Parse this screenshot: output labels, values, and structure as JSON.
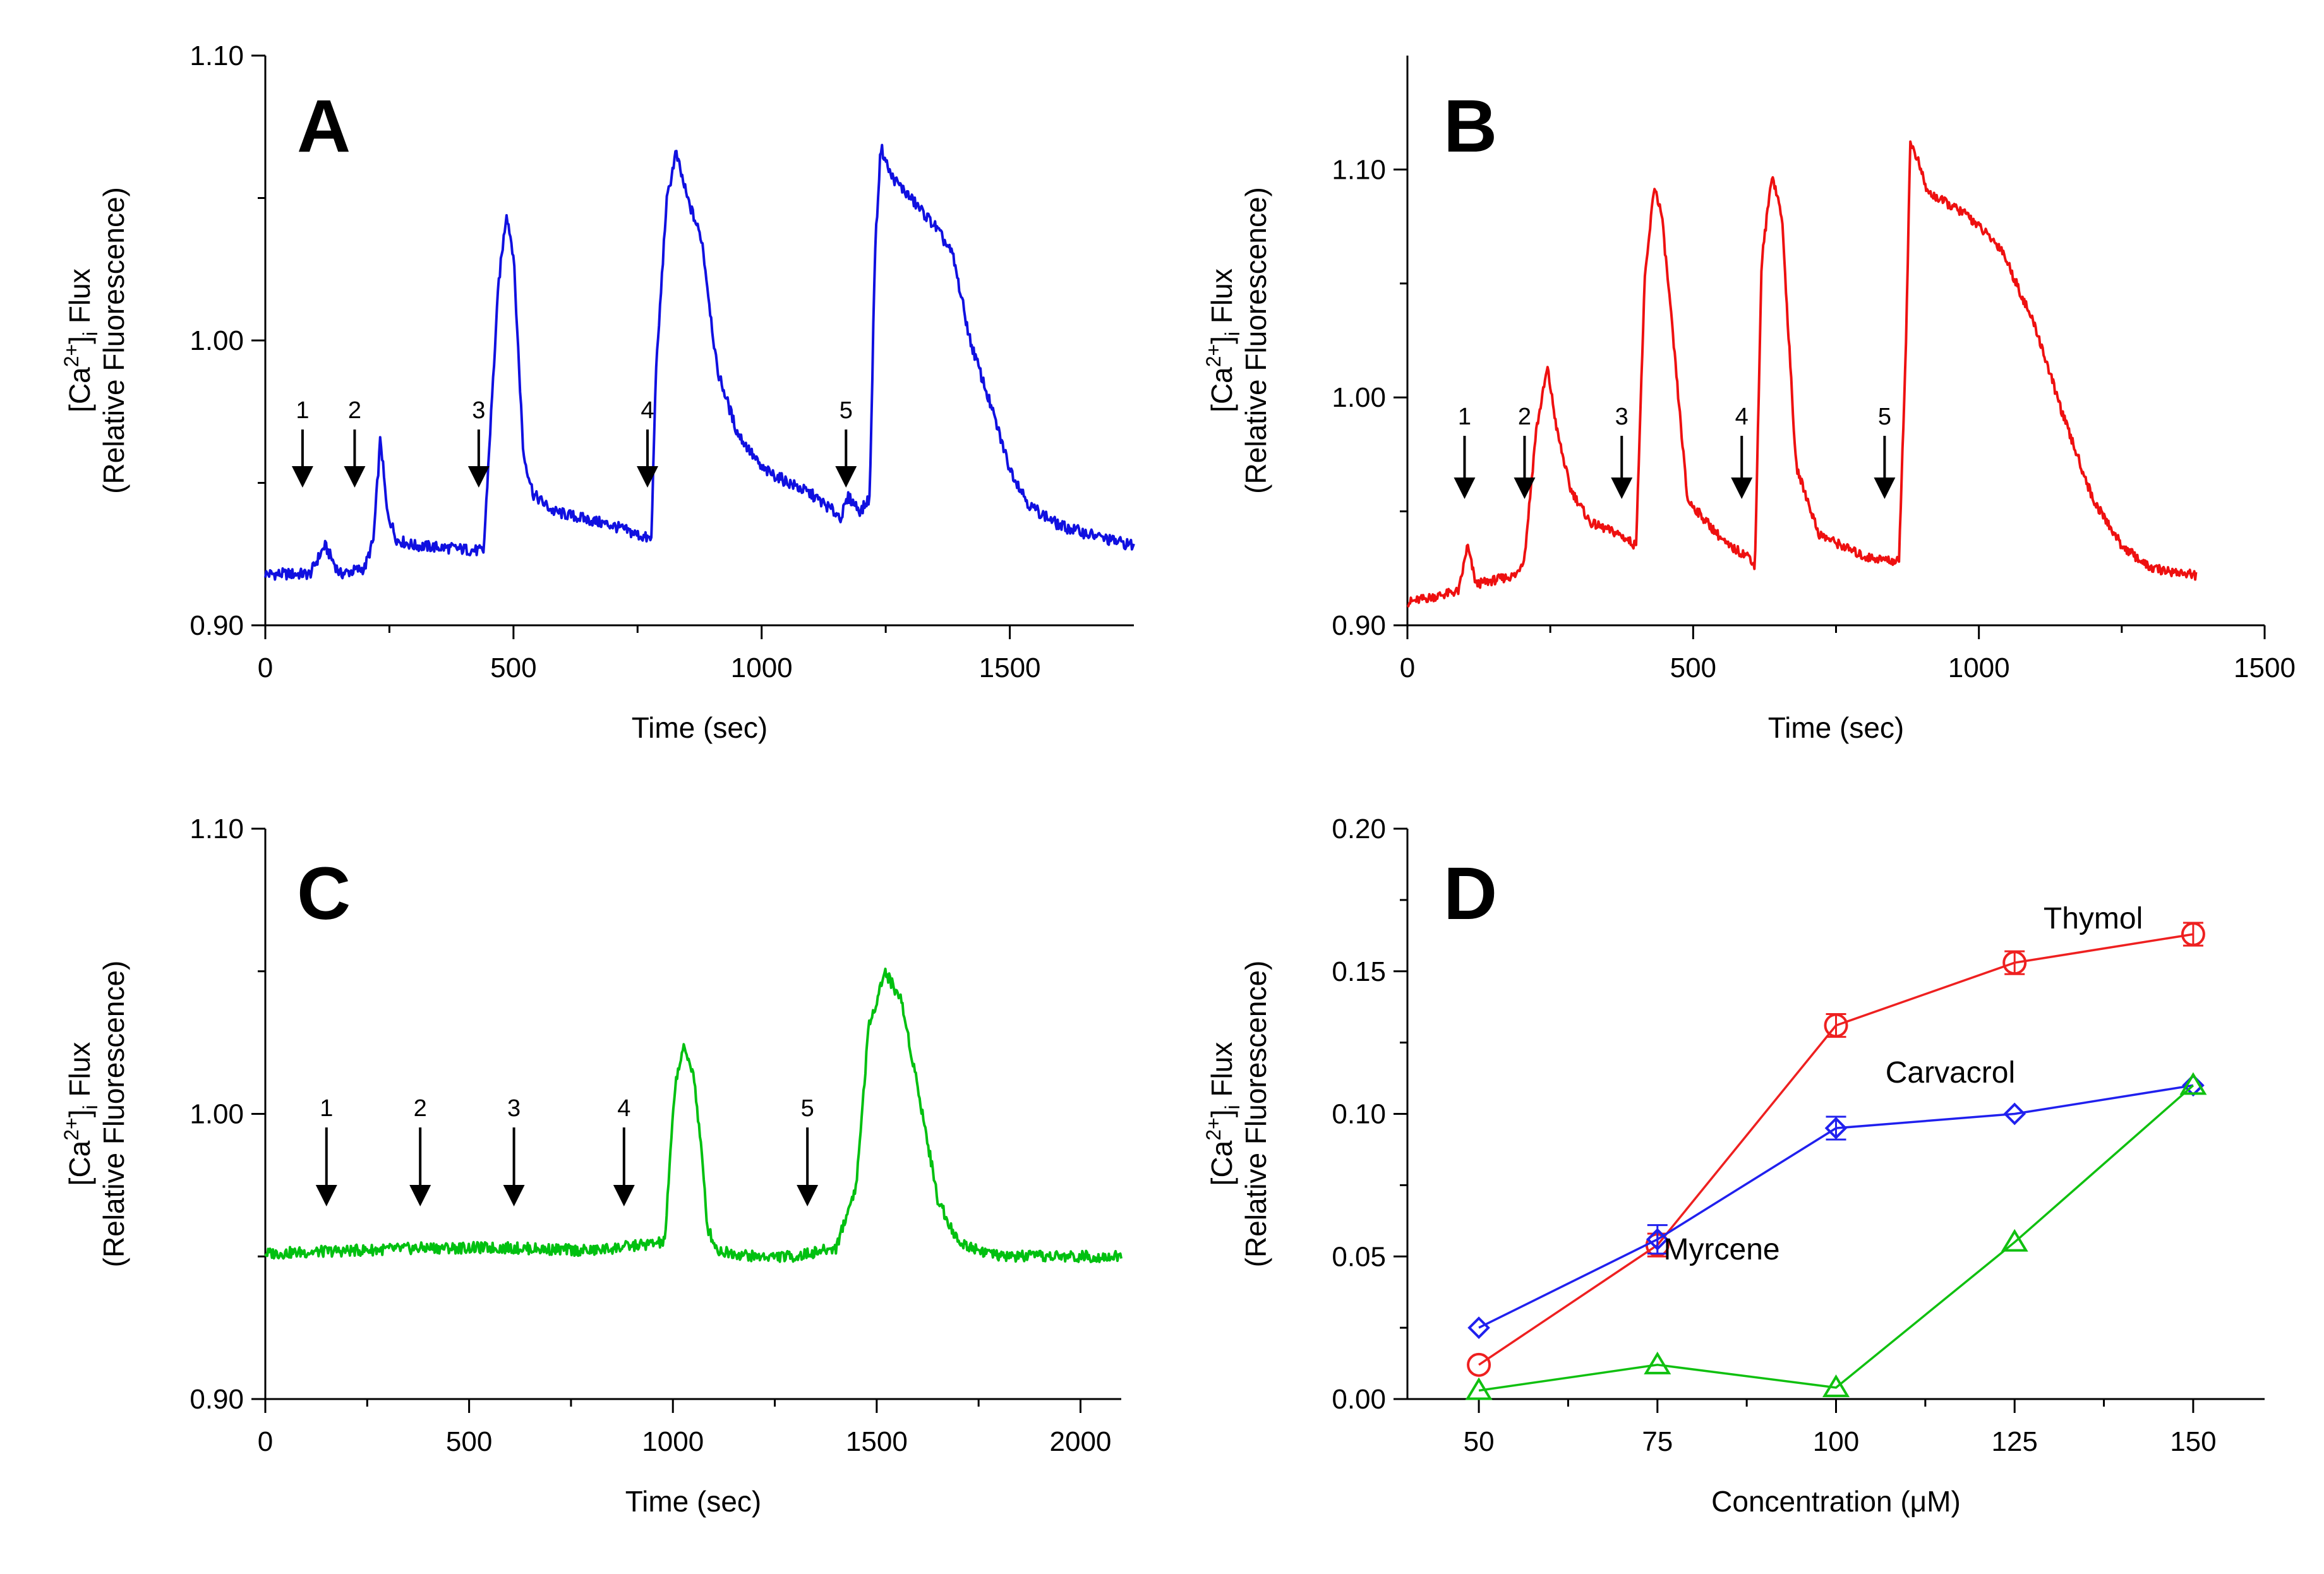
{
  "chart_data": [
    {
      "type": "line",
      "panel": "A",
      "color": "#1010e0",
      "xlabel": "Time  (sec)",
      "ylabel_line1": "[Ca2+]i Flux",
      "ylabel_line2": "(Relative Fluorescence)",
      "xlim": [
        0,
        1750
      ],
      "ylim": [
        0.9,
        1.1
      ],
      "xticks": [
        0,
        500,
        1000,
        1500
      ],
      "xtick_labels": [
        "0",
        "500",
        "1000",
        "1500"
      ],
      "yticks": [
        0.9,
        1.0,
        1.1
      ],
      "ytick_labels": [
        "0.90",
        "1.00",
        "1.10"
      ],
      "minor_xticks": [
        250,
        750,
        1250
      ],
      "minor_yticks": [
        0.95,
        1.05
      ],
      "arrows": [
        {
          "label": "1",
          "x": 75
        },
        {
          "label": "2",
          "x": 180
        },
        {
          "label": "3",
          "x": 430
        },
        {
          "label": "4",
          "x": 770
        },
        {
          "label": "5",
          "x": 1170
        }
      ],
      "x": [
        0,
        90,
        120,
        150,
        200,
        218,
        232,
        245,
        265,
        300,
        380,
        440,
        452,
        470,
        486,
        500,
        520,
        540,
        580,
        700,
        778,
        786,
        808,
        827,
        850,
        880,
        910,
        950,
        1000,
        1100,
        1160,
        1175,
        1200,
        1218,
        1228,
        1240,
        1260,
        1300,
        1350,
        1385,
        1420,
        1460,
        1500,
        1540,
        1600,
        1700,
        1750
      ],
      "values": [
        0.918,
        0.918,
        0.928,
        0.918,
        0.92,
        0.93,
        0.966,
        0.94,
        0.93,
        0.928,
        0.927,
        0.926,
        0.965,
        1.02,
        1.045,
        1.03,
        0.96,
        0.946,
        0.94,
        0.935,
        0.93,
        0.985,
        1.048,
        1.066,
        1.05,
        1.035,
        0.99,
        0.968,
        0.955,
        0.946,
        0.938,
        0.945,
        0.94,
        0.945,
        1.03,
        1.068,
        1.058,
        1.05,
        1.04,
        1.03,
        1.0,
        0.978,
        0.955,
        0.942,
        0.935,
        0.93,
        0.928
      ]
    },
    {
      "type": "line",
      "panel": "B",
      "color": "#ee1010",
      "xlabel": "Time  (sec)",
      "ylabel_line1": "[Ca2+]i Flux",
      "ylabel_line2": "(Relative Fluorescence)",
      "xlim": [
        0,
        1500
      ],
      "ylim": [
        0.9,
        1.15
      ],
      "xticks": [
        0,
        500,
        1000,
        1500
      ],
      "xtick_labels": [
        "0",
        "500",
        "1000",
        "1500"
      ],
      "yticks": [
        0.9,
        1.0,
        1.1
      ],
      "ytick_labels": [
        "0.90",
        "1.00",
        "1.10"
      ],
      "minor_xticks": [
        250,
        750,
        1250
      ],
      "minor_yticks": [
        0.95,
        1.05
      ],
      "arrows": [
        {
          "label": "1",
          "x": 100
        },
        {
          "label": "2",
          "x": 205
        },
        {
          "label": "3",
          "x": 375
        },
        {
          "label": "4",
          "x": 585
        },
        {
          "label": "5",
          "x": 835
        }
      ],
      "x": [
        0,
        90,
        105,
        120,
        190,
        205,
        225,
        245,
        262,
        285,
        320,
        370,
        400,
        415,
        432,
        445,
        460,
        490,
        560,
        600,
        608,
        620,
        638,
        655,
        680,
        720,
        800,
        860,
        872,
        880,
        892,
        910,
        980,
        1040,
        1100,
        1150,
        1200,
        1250,
        1300,
        1380
      ],
      "values": [
        0.91,
        0.915,
        0.935,
        0.918,
        0.922,
        0.93,
        0.985,
        1.013,
        0.985,
        0.96,
        0.945,
        0.94,
        0.935,
        1.05,
        1.093,
        1.08,
        1.04,
        0.955,
        0.935,
        0.93,
        0.925,
        1.06,
        1.098,
        1.08,
        0.97,
        0.94,
        0.93,
        0.928,
        1.02,
        1.112,
        1.105,
        1.09,
        1.08,
        1.065,
        1.03,
        0.99,
        0.955,
        0.935,
        0.925,
        0.922
      ]
    },
    {
      "type": "line",
      "panel": "C",
      "color": "#00c010",
      "xlabel": "Time  (sec)",
      "ylabel_line1": "[Ca2+]i Flux",
      "ylabel_line2": "(Relative Fluorescence)",
      "xlim": [
        0,
        2100
      ],
      "ylim": [
        0.9,
        1.1
      ],
      "xticks": [
        0,
        500,
        1000,
        1500,
        2000
      ],
      "xtick_labels": [
        "0",
        "500",
        "1000",
        "1500",
        "2000"
      ],
      "yticks": [
        0.9,
        1.0,
        1.1
      ],
      "ytick_labels": [
        "0.90",
        "1.00",
        "1.10"
      ],
      "minor_xticks": [
        250,
        750,
        1250,
        1750
      ],
      "minor_yticks": [
        0.95,
        1.05
      ],
      "arrows": [
        {
          "label": "1",
          "x": 150
        },
        {
          "label": "2",
          "x": 380
        },
        {
          "label": "3",
          "x": 610
        },
        {
          "label": "4",
          "x": 880
        },
        {
          "label": "5",
          "x": 1330
        }
      ],
      "x": [
        0,
        200,
        400,
        600,
        800,
        980,
        1005,
        1025,
        1050,
        1068,
        1085,
        1110,
        1200,
        1300,
        1400,
        1450,
        1480,
        1520,
        1560,
        1600,
        1650,
        1700,
        1800,
        2000,
        2100
      ],
      "values": [
        0.951,
        0.952,
        0.953,
        0.953,
        0.952,
        0.955,
        1.01,
        1.023,
        1.015,
        0.99,
        0.96,
        0.952,
        0.95,
        0.95,
        0.953,
        0.975,
        1.03,
        1.05,
        1.04,
        1.01,
        0.97,
        0.955,
        0.95,
        0.95,
        0.95
      ]
    },
    {
      "type": "line",
      "panel": "D",
      "xlabel": "Concentration (μM)",
      "ylabel_line1": "[Ca2+]i Flux",
      "ylabel_line2": "(Relative Fluorescence)",
      "xlim": [
        40,
        160
      ],
      "ylim": [
        0,
        0.2
      ],
      "xticks": [
        50,
        75,
        100,
        125,
        150
      ],
      "xtick_labels": [
        "50",
        "75",
        "100",
        "125",
        "150"
      ],
      "yticks": [
        0,
        0.05,
        0.1,
        0.15,
        0.2
      ],
      "ytick_labels": [
        "0.00",
        "0.05",
        "0.10",
        "0.15",
        "0.20"
      ],
      "minor_xticks": [
        62.5,
        87.5,
        112.5,
        137.5
      ],
      "minor_yticks": [
        0.025,
        0.075,
        0.125,
        0.175
      ],
      "categories": [
        50,
        75,
        100,
        125,
        150
      ],
      "series": [
        {
          "name": "Thymol",
          "color": "#ee2020",
          "marker": "circle",
          "values": [
            0.012,
            0.054,
            0.131,
            0.153,
            0.163
          ],
          "errors": [
            0.0,
            0.004,
            0.004,
            0.004,
            0.004
          ],
          "label_x": 136,
          "label_y": 0.165
        },
        {
          "name": "Carvacrol",
          "color": "#2020ee",
          "marker": "diamond",
          "values": [
            0.025,
            0.056,
            0.095,
            0.1,
            0.11
          ],
          "errors": [
            0.0,
            0.005,
            0.004,
            0.0,
            0.0
          ],
          "label_x": 116,
          "label_y": 0.111
        },
        {
          "name": "Myrcene",
          "color": "#10c010",
          "marker": "triangle",
          "values": [
            0.003,
            0.012,
            0.004,
            0.055,
            0.11
          ],
          "errors": [
            0,
            0,
            0,
            0,
            0
          ],
          "label_x": 84,
          "label_y": 0.049
        }
      ]
    }
  ]
}
